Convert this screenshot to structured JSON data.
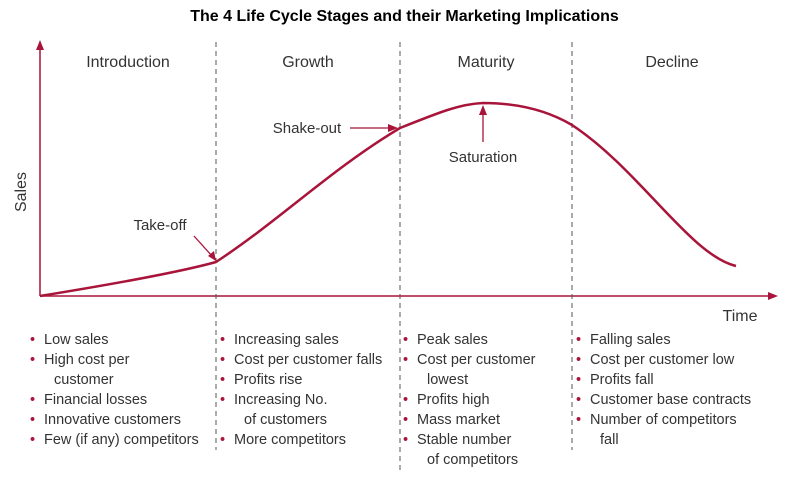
{
  "title": "The 4 Life Cycle Stages and their Marketing Implications",
  "axes": {
    "y_label": "Sales",
    "x_label": "Time"
  },
  "colors": {
    "curve": "#a8143a",
    "axis": "#a8143a",
    "divider": "#555555",
    "text": "#333333"
  },
  "stages": [
    {
      "name": "Introduction",
      "bullets": [
        [
          "Low sales"
        ],
        [
          "High cost per",
          "customer"
        ],
        [
          "Financial losses"
        ],
        [
          "Innovative customers"
        ],
        [
          "Few (if any) competitors"
        ]
      ]
    },
    {
      "name": "Growth",
      "bullets": [
        [
          "Increasing sales"
        ],
        [
          "Cost per customer falls"
        ],
        [
          "Profits rise"
        ],
        [
          "Increasing No.",
          "of customers"
        ],
        [
          "More competitors"
        ]
      ]
    },
    {
      "name": "Maturity",
      "bullets": [
        [
          "Peak sales"
        ],
        [
          "Cost per customer",
          "lowest"
        ],
        [
          "Profits high"
        ],
        [
          "Mass market"
        ],
        [
          "Stable number",
          "of competitors"
        ]
      ]
    },
    {
      "name": "Decline",
      "bullets": [
        [
          "Falling sales"
        ],
        [
          "Cost per customer low"
        ],
        [
          "Profits fall"
        ],
        [
          "Customer base contracts"
        ],
        [
          "Number of competitors",
          "fall"
        ]
      ]
    }
  ],
  "annotations": {
    "take_off": "Take-off",
    "shake_out": "Shake-out",
    "saturation": "Saturation"
  }
}
